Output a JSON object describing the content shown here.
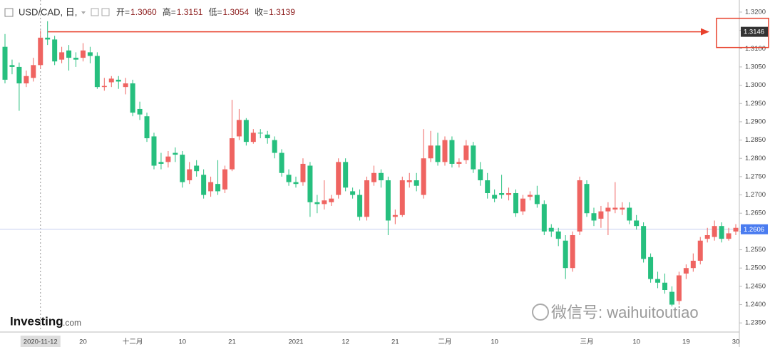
{
  "chart_data": {
    "type": "candlestick",
    "symbol": "USD/CAD, 日,",
    "ohlc_header": [
      [
        "开=",
        "1.3060"
      ],
      [
        "高=",
        "1.3151"
      ],
      [
        "低=",
        "1.3054"
      ],
      [
        "收=",
        "1.3139"
      ]
    ],
    "logo": [
      "Investing",
      ".com"
    ],
    "watermark": "微信号: waihuitoutiao",
    "up_color": "#ef6461",
    "down_color": "#26bf7e",
    "categories": [
      null,
      null,
      null,
      null,
      null,
      "2020-11-12",
      null,
      null,
      null,
      null,
      null,
      "20",
      null,
      null,
      null,
      null,
      null,
      null,
      "十二月",
      null,
      null,
      null,
      null,
      null,
      null,
      "10",
      null,
      null,
      null,
      null,
      null,
      null,
      "21",
      null,
      null,
      null,
      null,
      null,
      null,
      null,
      null,
      "2021",
      null,
      null,
      null,
      null,
      null,
      null,
      "12",
      null,
      null,
      null,
      null,
      null,
      null,
      "21",
      null,
      null,
      null,
      null,
      null,
      null,
      "二月",
      null,
      null,
      null,
      null,
      null,
      null,
      "10",
      null,
      null,
      null,
      null,
      null,
      null,
      null,
      null,
      null,
      null,
      null,
      null,
      "三月",
      null,
      null,
      null,
      null,
      null,
      null,
      "10",
      null,
      null,
      null,
      null,
      null,
      null,
      "19",
      null,
      null,
      null,
      null,
      null,
      null,
      "30"
    ],
    "open": [
      1.3105,
      1.3055,
      1.305,
      1.3005,
      1.302,
      1.3055,
      1.313,
      1.3125,
      1.307,
      1.3095,
      1.3075,
      1.3075,
      1.309,
      1.308,
      1.2995,
      1.3008,
      1.3015,
      1.2995,
      1.3005,
      1.2935,
      1.2915,
      1.286,
      1.279,
      1.279,
      1.2815,
      1.281,
      1.274,
      1.278,
      1.2755,
      1.271,
      1.273,
      1.2715,
      1.277,
      1.286,
      1.2905,
      1.2845,
      1.287,
      1.2865,
      1.285,
      1.2815,
      1.2755,
      1.2735,
      1.2735,
      1.278,
      1.268,
      1.2675,
      1.268,
      1.27,
      1.279,
      1.271,
      1.27,
      1.264,
      1.2735,
      1.276,
      1.274,
      1.264,
      1.2645,
      1.2735,
      1.274,
      1.27,
      1.28,
      1.2835,
      1.279,
      1.285,
      1.2785,
      1.2795,
      1.2835,
      1.277,
      1.274,
      1.27,
      1.2705,
      1.27,
      1.2705,
      1.2655,
      1.2695,
      1.27,
      1.2675,
      1.261,
      1.26,
      1.2575,
      1.25,
      1.26,
      1.273,
      1.265,
      1.2635,
      1.2655,
      1.266,
      1.266,
      1.2665,
      1.263,
      1.2615,
      1.253,
      1.247,
      1.246,
      1.2435,
      1.241,
      1.2485,
      1.25,
      1.252,
      1.258,
      1.2585,
      1.2615,
      1.258,
      1.26
    ],
    "high": [
      1.314,
      1.307,
      1.3062,
      1.304,
      1.3075,
      1.315,
      1.3175,
      1.3135,
      1.3105,
      1.311,
      1.309,
      1.3115,
      1.3105,
      1.309,
      1.302,
      1.3025,
      1.3025,
      1.302,
      1.3015,
      1.2955,
      1.2925,
      1.287,
      1.2815,
      1.282,
      1.283,
      1.282,
      1.279,
      1.2795,
      1.277,
      1.275,
      1.2795,
      1.278,
      1.296,
      1.2935,
      1.291,
      1.288,
      1.288,
      1.2875,
      1.286,
      1.2825,
      1.277,
      1.275,
      1.28,
      1.279,
      1.27,
      1.274,
      1.27,
      1.28,
      1.28,
      1.272,
      1.2715,
      1.275,
      1.278,
      1.277,
      1.275,
      1.266,
      1.275,
      1.276,
      1.276,
      1.288,
      1.2875,
      1.287,
      1.286,
      1.286,
      1.28,
      1.285,
      1.2845,
      1.279,
      1.276,
      1.2715,
      1.2755,
      1.272,
      1.2715,
      1.27,
      1.271,
      1.2725,
      1.2685,
      1.262,
      1.261,
      1.259,
      1.26,
      1.275,
      1.274,
      1.2665,
      1.267,
      1.268,
      1.2735,
      1.268,
      1.268,
      1.2645,
      1.2625,
      1.254,
      1.249,
      1.2485,
      1.245,
      1.249,
      1.251,
      1.254,
      1.2585,
      1.261,
      1.263,
      1.2625,
      1.261,
      1.262
    ],
    "low": [
      1.3005,
      1.303,
      1.293,
      1.2995,
      1.301,
      1.3045,
      1.311,
      1.3055,
      1.306,
      1.304,
      1.305,
      1.3065,
      1.306,
      1.299,
      1.2985,
      1.2995,
      1.299,
      1.2975,
      1.2915,
      1.2905,
      1.2845,
      1.277,
      1.277,
      1.2775,
      1.279,
      1.272,
      1.273,
      1.275,
      1.269,
      1.2695,
      1.27,
      1.2705,
      1.2765,
      1.285,
      1.2835,
      1.284,
      1.2855,
      1.284,
      1.28,
      1.275,
      1.2725,
      1.272,
      1.2725,
      1.264,
      1.265,
      1.266,
      1.267,
      1.269,
      1.271,
      1.269,
      1.263,
      1.263,
      1.2725,
      1.272,
      1.259,
      1.262,
      1.264,
      1.272,
      1.271,
      1.269,
      1.279,
      1.278,
      1.278,
      1.2775,
      1.2775,
      1.2785,
      1.276,
      1.2725,
      1.269,
      1.268,
      1.269,
      1.2685,
      1.264,
      1.2645,
      1.2685,
      1.2665,
      1.259,
      1.2585,
      1.256,
      1.247,
      1.249,
      1.259,
      1.264,
      1.2615,
      1.261,
      1.259,
      1.265,
      1.2645,
      1.262,
      1.2605,
      1.2515,
      1.246,
      1.2445,
      1.243,
      1.2395,
      1.24,
      1.247,
      1.249,
      1.251,
      1.257,
      1.2575,
      1.257,
      1.2575,
      1.259
    ],
    "close": [
      1.3015,
      1.305,
      1.3005,
      1.3025,
      1.3055,
      1.313,
      1.3125,
      1.3065,
      1.309,
      1.3075,
      1.307,
      1.3095,
      1.308,
      1.2995,
      1.2998,
      1.3018,
      1.301,
      1.3005,
      1.2925,
      1.292,
      1.2855,
      1.278,
      1.2785,
      1.2805,
      1.281,
      1.2735,
      1.277,
      1.2765,
      1.27,
      1.2735,
      1.271,
      1.277,
      1.2855,
      1.2905,
      1.2845,
      1.287,
      1.2868,
      1.2855,
      1.2815,
      1.276,
      1.2735,
      1.273,
      1.2785,
      1.268,
      1.2675,
      1.2685,
      1.269,
      1.279,
      1.272,
      1.27,
      1.264,
      1.274,
      1.276,
      1.274,
      1.263,
      1.2645,
      1.274,
      1.274,
      1.2725,
      1.28,
      1.2835,
      1.279,
      1.285,
      1.2785,
      1.279,
      1.2835,
      1.277,
      1.274,
      1.2705,
      1.269,
      1.27,
      1.2705,
      1.265,
      1.269,
      1.27,
      1.2675,
      1.26,
      1.26,
      1.258,
      1.25,
      1.259,
      1.274,
      1.265,
      1.263,
      1.2655,
      1.2665,
      1.2665,
      1.2665,
      1.263,
      1.2615,
      1.2525,
      1.247,
      1.246,
      1.244,
      1.24,
      1.248,
      1.25,
      1.252,
      1.2575,
      1.259,
      1.2615,
      1.258,
      1.2595,
      1.261
    ],
    "ylim": [
      1.2327,
      1.3233
    ],
    "yticks": [
      {
        "value": 1.32,
        "label": "1.3200"
      },
      {
        "value": 1.315,
        "label": "1.3150"
      },
      {
        "value": 1.31,
        "label": "1.3100"
      },
      {
        "value": 1.305,
        "label": "1.3050"
      },
      {
        "value": 1.3,
        "label": "1.3000"
      },
      {
        "value": 1.295,
        "label": "1.2950"
      },
      {
        "value": 1.29,
        "label": "1.2900"
      },
      {
        "value": 1.285,
        "label": "1.2850"
      },
      {
        "value": 1.28,
        "label": "1.2800"
      },
      {
        "value": 1.275,
        "label": "1.2750"
      },
      {
        "value": 1.27,
        "label": "1.2700"
      },
      {
        "value": 1.265,
        "label": "1.2650"
      },
      {
        "value": 1.26,
        "label": "1.2600"
      },
      {
        "value": 1.255,
        "label": "1.2550"
      },
      {
        "value": 1.25,
        "label": "1.2500"
      },
      {
        "value": 1.245,
        "label": "1.2450"
      },
      {
        "value": 1.24,
        "label": "1.2400"
      },
      {
        "value": 1.235,
        "label": "1.2350"
      }
    ],
    "price_markers": [
      {
        "value": 1.3146,
        "color": "#333333",
        "arrow": "#e8412c"
      },
      {
        "value": 1.2606,
        "color": "#4a7cf0",
        "line": "#c5cff0"
      }
    ]
  }
}
